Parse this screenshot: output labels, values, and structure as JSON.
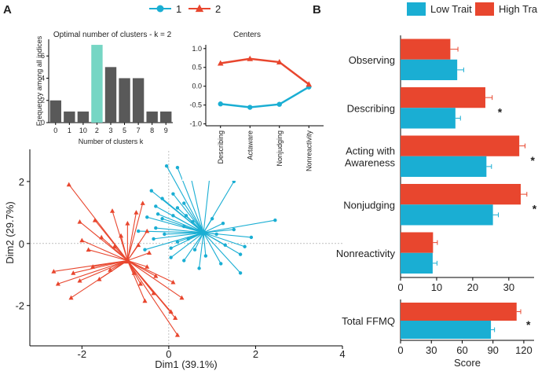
{
  "panels": {
    "a_label": "A",
    "b_label": "B"
  },
  "colors": {
    "cluster1": "#1aaed3",
    "cluster2": "#e8462e",
    "bar_gray": "#595959",
    "bar_highlight": "#76d6c4",
    "low_trait": "#1aaed3",
    "high_trait": "#e8462e"
  },
  "legend_a": [
    {
      "label": "1",
      "color": "#1aaed3",
      "marker": "circle"
    },
    {
      "label": "2",
      "color": "#e8462e",
      "marker": "triangle"
    }
  ],
  "legend_b": [
    {
      "label": "Low Trait",
      "color": "#1aaed3"
    },
    {
      "label": "High Trait",
      "color": "#e8462e"
    }
  ],
  "chart_data": [
    {
      "id": "cluster-count",
      "type": "bar",
      "title": "Optimal number of clusters - k = 2",
      "xlabel": "Number of clusters k",
      "ylabel": "Frequency among all indices",
      "categories": [
        "0",
        "1",
        "10",
        "2",
        "3",
        "5",
        "7",
        "8",
        "9"
      ],
      "values": [
        2,
        1,
        1,
        7,
        5,
        4,
        4,
        1,
        1
      ],
      "highlight": "2",
      "yticks": [
        0,
        2,
        4,
        6
      ],
      "ylim": [
        0,
        7.5
      ]
    },
    {
      "id": "centers",
      "type": "line",
      "title": "Centers",
      "categories": [
        "Describing",
        "Actaware",
        "Nonjudging",
        "Nonreactivity"
      ],
      "series": [
        {
          "name": "1",
          "values": [
            -0.47,
            -0.56,
            -0.48,
            -0.02
          ]
        },
        {
          "name": "2",
          "values": [
            0.61,
            0.73,
            0.64,
            0.05
          ]
        }
      ],
      "yticks": [
        1.0,
        0.5,
        0.0,
        -0.5,
        -1.0
      ],
      "ytick_labels": [
        "1.0",
        "0.5",
        "0.0",
        "-0.5",
        "-1.0"
      ],
      "ylim": [
        -1.05,
        1.1
      ]
    },
    {
      "id": "pca-biplot",
      "type": "scatter",
      "xlabel": "Dim1 (39.1%)",
      "ylabel": "Dim2 (29.7%)",
      "xlim": [
        -3.2,
        4
      ],
      "ylim": [
        -3.3,
        4
      ],
      "xticks": [
        -2,
        0,
        2,
        4
      ],
      "yticks": [
        -2,
        0,
        2,
        4
      ],
      "series": [
        {
          "name": "1",
          "center": [
            0.8,
            0.35
          ],
          "points": [
            [
              -0.05,
              2.5
            ],
            [
              0.2,
              2.45
            ],
            [
              0.5,
              2.2
            ],
            [
              0.95,
              2.25
            ],
            [
              1.5,
              2.0
            ],
            [
              -0.4,
              1.7
            ],
            [
              -0.15,
              1.45
            ],
            [
              0.1,
              1.6
            ],
            [
              0.35,
              1.3
            ],
            [
              -0.3,
              1.2
            ],
            [
              0.2,
              1.15
            ],
            [
              -0.25,
              0.95
            ],
            [
              0.1,
              0.9
            ],
            [
              -0.5,
              0.85
            ],
            [
              0.4,
              0.9
            ],
            [
              -0.15,
              0.8
            ],
            [
              0.55,
              0.7
            ],
            [
              1.0,
              0.8
            ],
            [
              1.25,
              0.65
            ],
            [
              0.35,
              0.55
            ],
            [
              0.7,
              0.45
            ],
            [
              -0.7,
              0.4
            ],
            [
              -0.3,
              0.5
            ],
            [
              -0.1,
              0.3
            ],
            [
              0.45,
              0.15
            ],
            [
              1.1,
              0.3
            ],
            [
              1.5,
              0.45
            ],
            [
              1.9,
              0.2
            ],
            [
              2.45,
              0.75
            ],
            [
              -0.35,
              0.15
            ],
            [
              0.2,
              0.05
            ],
            [
              -0.55,
              -0.2
            ],
            [
              0.05,
              -0.15
            ],
            [
              0.6,
              -0.2
            ],
            [
              1.3,
              -0.05
            ],
            [
              1.75,
              -0.1
            ],
            [
              0.35,
              -0.55
            ],
            [
              0.85,
              -0.4
            ],
            [
              1.2,
              -0.65
            ],
            [
              1.65,
              -0.35
            ],
            [
              0.7,
              -0.8
            ],
            [
              1.65,
              -0.95
            ],
            [
              0.05,
              -0.45
            ]
          ]
        },
        {
          "name": "2",
          "center": [
            -0.95,
            -0.55
          ],
          "points": [
            [
              -2.3,
              1.9
            ],
            [
              -2.05,
              0.7
            ],
            [
              -1.7,
              0.75
            ],
            [
              -1.3,
              1.05
            ],
            [
              -0.75,
              1.0
            ],
            [
              -0.6,
              1.3
            ],
            [
              -0.95,
              0.65
            ],
            [
              -0.5,
              0.4
            ],
            [
              -1.1,
              0.25
            ],
            [
              -1.55,
              0.2
            ],
            [
              -2.0,
              0.1
            ],
            [
              -1.85,
              -0.2
            ],
            [
              -1.25,
              -0.1
            ],
            [
              -0.7,
              -0.05
            ],
            [
              -0.45,
              -0.3
            ],
            [
              -2.65,
              -0.9
            ],
            [
              -2.2,
              -0.95
            ],
            [
              -1.75,
              -0.75
            ],
            [
              -2.55,
              -1.3
            ],
            [
              -2.25,
              -1.75
            ],
            [
              -2.05,
              -1.2
            ],
            [
              -1.6,
              -1.15
            ],
            [
              -1.35,
              -0.85
            ],
            [
              -0.8,
              -0.95
            ],
            [
              -0.5,
              -0.75
            ],
            [
              -0.3,
              -1.05
            ],
            [
              -0.65,
              -1.3
            ],
            [
              0.1,
              -1.25
            ],
            [
              -0.35,
              -1.6
            ],
            [
              0.3,
              -1.75
            ],
            [
              0.05,
              -2.2
            ],
            [
              -0.55,
              -1.85
            ],
            [
              0.15,
              -2.4
            ],
            [
              0.2,
              -2.95
            ]
          ]
        }
      ]
    },
    {
      "id": "ffmq-facets",
      "type": "bar",
      "orientation": "horizontal",
      "xlabel": "",
      "xlim": [
        0,
        37
      ],
      "xticks": [
        0,
        10,
        20,
        30
      ],
      "categories": [
        "Observing",
        "Describing",
        "Acting with Awareness",
        "Nonjudging",
        "Nonreactivity"
      ],
      "category_labels": [
        [
          "Observing"
        ],
        [
          "Describing"
        ],
        [
          "Acting with",
          "Awareness"
        ],
        [
          "Nonjudging"
        ],
        [
          "Nonreactivity"
        ]
      ],
      "series": [
        {
          "name": "Low Trait",
          "values": [
            15.7,
            15.2,
            23.8,
            25.6,
            8.9
          ],
          "errors": [
            1.8,
            1.4,
            1.4,
            1.5,
            1.2
          ]
        },
        {
          "name": "High Trait",
          "values": [
            13.8,
            23.5,
            32.9,
            33.3,
            9.0
          ],
          "errors": [
            2.1,
            1.9,
            1.6,
            1.7,
            1.2
          ]
        }
      ],
      "significant": [
        false,
        true,
        true,
        true,
        false
      ],
      "sig_marker": "*"
    },
    {
      "id": "ffmq-total",
      "type": "bar",
      "orientation": "horizontal",
      "xlabel": "Score",
      "xlim": [
        0,
        130
      ],
      "xticks": [
        0,
        30,
        60,
        90,
        120
      ],
      "categories": [
        "Total FFMQ"
      ],
      "category_labels": [
        [
          "Total FFMQ"
        ]
      ],
      "series": [
        {
          "name": "Low Trait",
          "values": [
            88
          ],
          "errors": [
            3.5
          ]
        },
        {
          "name": "High Trait",
          "values": [
            113
          ],
          "errors": [
            4
          ]
        }
      ],
      "significant": [
        true
      ],
      "sig_marker": "*"
    }
  ]
}
